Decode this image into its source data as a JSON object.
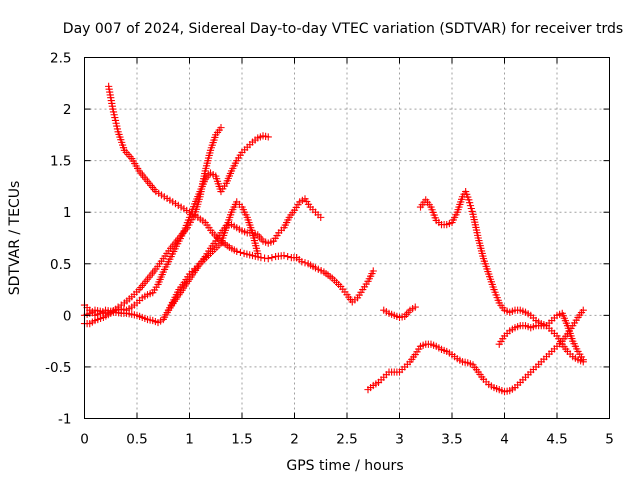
{
  "chart_data": {
    "type": "scatter",
    "title": "Day 007 of 2024, Sidereal Day-to-day VTEC variation (SDTVAR) for receiver trds",
    "xlabel": "GPS time / hours",
    "ylabel": "SDTVAR / TECUs",
    "xlim": [
      0,
      5
    ],
    "ylim": [
      -1,
      2.5
    ],
    "xticks": [
      0,
      0.5,
      1,
      1.5,
      2,
      2.5,
      3,
      3.5,
      4,
      4.5,
      5
    ],
    "xtick_labels": [
      "0",
      "0.5",
      "1",
      "1.5",
      "2",
      "2.5",
      "3",
      "3.5",
      "4",
      "4.5",
      "5"
    ],
    "yticks": [
      -1,
      -0.5,
      0,
      0.5,
      1,
      1.5,
      2,
      2.5
    ],
    "ytick_labels": [
      "-1",
      "-0.5",
      "0",
      "0.5",
      "1",
      "1.5",
      "2",
      "2.5"
    ],
    "grid": true,
    "marker": "plus",
    "color": "#ff0000",
    "series": [
      {
        "x": [
          0.23,
          0.27,
          0.32,
          0.38,
          0.45,
          0.52,
          0.6,
          0.68,
          0.76,
          0.84,
          0.92,
          1.0,
          1.08,
          1.15,
          1.22,
          1.3,
          1.38,
          1.45,
          1.52,
          1.6,
          1.68,
          1.75,
          1.82,
          1.9,
          1.97,
          2.02
        ],
        "y": [
          2.22,
          2.0,
          1.78,
          1.6,
          1.52,
          1.4,
          1.3,
          1.2,
          1.15,
          1.1,
          1.05,
          1.0,
          0.95,
          0.9,
          0.8,
          0.72,
          0.66,
          0.62,
          0.6,
          0.58,
          0.56,
          0.55,
          0.57,
          0.58,
          0.56,
          0.56
        ]
      },
      {
        "x": [
          2.02,
          2.07,
          2.13,
          2.2,
          2.28,
          2.36,
          2.44,
          2.5,
          2.55,
          2.6,
          2.65,
          2.7,
          2.75
        ],
        "y": [
          0.56,
          0.52,
          0.5,
          0.46,
          0.42,
          0.36,
          0.28,
          0.2,
          0.13,
          0.17,
          0.25,
          0.33,
          0.43
        ]
      },
      {
        "x": [
          0.0,
          0.05,
          0.1,
          0.15,
          0.2,
          0.25,
          0.3,
          0.35,
          0.4,
          0.45,
          0.5,
          0.55,
          0.6,
          0.65,
          0.7,
          0.75,
          0.8,
          0.85,
          0.9,
          0.95,
          1.0,
          1.05,
          1.1,
          1.15,
          1.2,
          1.25,
          1.3,
          1.35,
          1.4,
          1.45,
          1.5,
          1.55,
          1.6,
          1.65,
          1.7,
          1.75,
          1.8,
          1.85,
          1.9,
          1.95,
          2.0,
          2.05,
          2.1,
          2.15,
          2.2,
          2.25
        ],
        "y": [
          0.0,
          0.02,
          0.05,
          0.04,
          0.02,
          0.03,
          0.03,
          0.02,
          0.02,
          0.01,
          0.0,
          -0.02,
          -0.04,
          -0.05,
          -0.07,
          -0.04,
          0.05,
          0.15,
          0.25,
          0.32,
          0.4,
          0.45,
          0.5,
          0.57,
          0.65,
          0.72,
          0.8,
          0.87,
          0.88,
          0.85,
          0.82,
          0.8,
          0.8,
          0.78,
          0.72,
          0.7,
          0.72,
          0.8,
          0.85,
          0.95,
          1.02,
          1.1,
          1.13,
          1.05,
          1.0,
          0.95
        ]
      },
      {
        "x": [
          0.0,
          0.05,
          0.1,
          0.18,
          0.25,
          0.32,
          0.38,
          0.45,
          0.52,
          0.6,
          0.68,
          0.75,
          0.82,
          0.9,
          0.98,
          1.05,
          1.1,
          1.15,
          1.2,
          1.25,
          1.3
        ],
        "y": [
          -0.08,
          -0.08,
          -0.05,
          -0.02,
          0.02,
          0.08,
          0.12,
          0.18,
          0.25,
          0.35,
          0.45,
          0.55,
          0.65,
          0.75,
          0.85,
          0.98,
          1.15,
          1.4,
          1.6,
          1.75,
          1.82
        ]
      },
      {
        "x": [
          0.0,
          0.05,
          0.1,
          0.15,
          0.2,
          0.25,
          0.3,
          0.35,
          0.4,
          0.45,
          0.5,
          0.55,
          0.6,
          0.65,
          0.7,
          0.75,
          0.8,
          0.85,
          0.9,
          0.95,
          1.0,
          1.05,
          1.1,
          1.15,
          1.2,
          1.25,
          1.3,
          1.35,
          1.4,
          1.45,
          1.5,
          1.55,
          1.6,
          1.65,
          1.7,
          1.75
        ],
        "y": [
          0.1,
          0.05,
          0.0,
          0.02,
          0.05,
          0.04,
          0.05,
          0.06,
          0.05,
          0.08,
          0.12,
          0.17,
          0.2,
          0.22,
          0.3,
          0.42,
          0.52,
          0.62,
          0.72,
          0.82,
          0.95,
          1.08,
          1.2,
          1.32,
          1.38,
          1.35,
          1.2,
          1.28,
          1.4,
          1.5,
          1.58,
          1.63,
          1.68,
          1.72,
          1.74,
          1.73
        ]
      },
      {
        "x": [
          0.8,
          0.9,
          1.0,
          1.1,
          1.2,
          1.3,
          1.35,
          1.4,
          1.45,
          1.5,
          1.55,
          1.6,
          1.65
        ],
        "y": [
          0.05,
          0.2,
          0.35,
          0.5,
          0.6,
          0.7,
          0.85,
          1.0,
          1.1,
          1.05,
          0.95,
          0.8,
          0.6
        ]
      },
      {
        "x": [
          2.85,
          2.9,
          2.95,
          3.0,
          3.05,
          3.1,
          3.15
        ],
        "y": [
          0.05,
          0.02,
          0.0,
          -0.02,
          -0.01,
          0.05,
          0.08
        ]
      },
      {
        "x": [
          3.2,
          3.25,
          3.3,
          3.35,
          3.4,
          3.45,
          3.5,
          3.55,
          3.6,
          3.63,
          3.66,
          3.7,
          3.75,
          3.8,
          3.85,
          3.9,
          3.95,
          4.0,
          4.05,
          4.1,
          4.15,
          4.2,
          4.25,
          4.3,
          4.35,
          4.4,
          4.45,
          4.5,
          4.55,
          4.6,
          4.65,
          4.7,
          4.75
        ],
        "y": [
          1.05,
          1.12,
          1.05,
          0.92,
          0.88,
          0.88,
          0.9,
          1.0,
          1.15,
          1.2,
          1.12,
          0.98,
          0.75,
          0.55,
          0.4,
          0.25,
          0.12,
          0.05,
          0.03,
          0.05,
          0.05,
          0.03,
          0.0,
          -0.05,
          -0.08,
          -0.1,
          -0.15,
          -0.2,
          -0.28,
          -0.35,
          -0.4,
          -0.43,
          -0.45
        ]
      },
      {
        "x": [
          2.7,
          2.75,
          2.8,
          2.85,
          2.9,
          2.95,
          3.0,
          3.05,
          3.1,
          3.15,
          3.2,
          3.25,
          3.3,
          3.35,
          3.4,
          3.45,
          3.5,
          3.55,
          3.6,
          3.65,
          3.7,
          3.75,
          3.8,
          3.85,
          3.9,
          3.95,
          4.0,
          4.05,
          4.1,
          4.15,
          4.2,
          4.25,
          4.3,
          4.35,
          4.4,
          4.45,
          4.5,
          4.55,
          4.6,
          4.65,
          4.7,
          4.75
        ],
        "y": [
          -0.72,
          -0.68,
          -0.65,
          -0.6,
          -0.55,
          -0.55,
          -0.55,
          -0.5,
          -0.45,
          -0.38,
          -0.3,
          -0.28,
          -0.28,
          -0.3,
          -0.33,
          -0.35,
          -0.38,
          -0.42,
          -0.45,
          -0.46,
          -0.48,
          -0.55,
          -0.62,
          -0.67,
          -0.7,
          -0.72,
          -0.74,
          -0.73,
          -0.7,
          -0.65,
          -0.6,
          -0.55,
          -0.5,
          -0.45,
          -0.4,
          -0.35,
          -0.3,
          -0.25,
          -0.18,
          -0.1,
          -0.02,
          0.05
        ]
      },
      {
        "x": [
          3.95,
          4.0,
          4.05,
          4.1,
          4.15,
          4.2,
          4.25,
          4.3,
          4.35,
          4.4,
          4.45,
          4.5,
          4.55,
          4.6,
          4.65,
          4.7,
          4.75
        ],
        "y": [
          -0.28,
          -0.2,
          -0.15,
          -0.12,
          -0.1,
          -0.1,
          -0.12,
          -0.1,
          -0.1,
          -0.1,
          -0.05,
          0.0,
          0.02,
          -0.1,
          -0.25,
          -0.35,
          -0.43
        ]
      }
    ]
  }
}
